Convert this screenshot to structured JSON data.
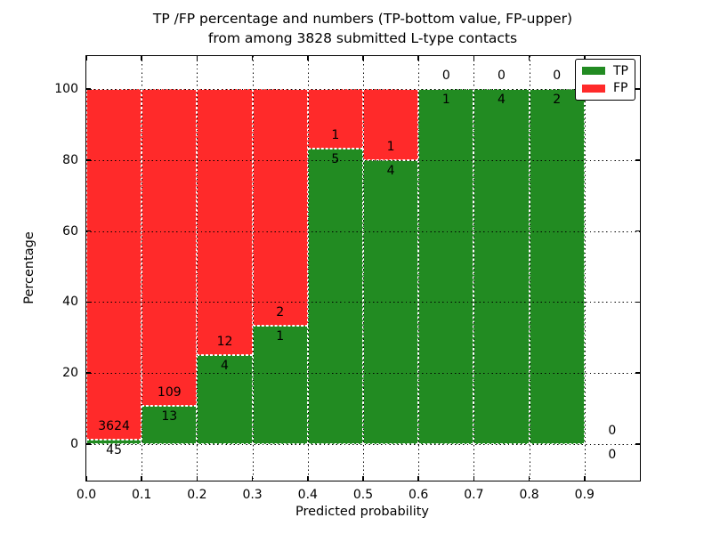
{
  "figure": {
    "background": "#ffffff"
  },
  "chart_data": {
    "type": "bar",
    "stacked": true,
    "title_line1": "TP /FP percentage and numbers (TP-bottom value, FP-upper)",
    "title_line2": "from among 3828 submitted L-type contacts",
    "xlabel": "Predicted probability",
    "ylabel": "Percentage",
    "xlim": [
      0.0,
      1.0
    ],
    "ylim": [
      -11,
      111
    ],
    "x_ticks": [
      "0.0",
      "0.1",
      "0.2",
      "0.3",
      "0.4",
      "0.5",
      "0.6",
      "0.7",
      "0.8",
      "0.9"
    ],
    "y_ticks": [
      "0",
      "20",
      "40",
      "60",
      "80",
      "100"
    ],
    "grid": true,
    "grid_style": "dotted-black-over-bars",
    "bar_edge_style": "dashed-white",
    "total_contacts": 3828,
    "legend": {
      "position": "upper-right",
      "entries": [
        {
          "label": "TP",
          "color": "#228B22"
        },
        {
          "label": "FP",
          "color": "#FF2A2A"
        }
      ]
    },
    "series": [
      {
        "name": "TP",
        "color": "#228B22",
        "position": "bottom"
      },
      {
        "name": "FP",
        "color": "#FF2A2A",
        "position": "upper"
      }
    ],
    "bins": [
      {
        "x_start": 0.0,
        "x_end": 0.1,
        "tp": 45,
        "fp": 3624,
        "tp_pct": 1.23
      },
      {
        "x_start": 0.1,
        "x_end": 0.2,
        "tp": 13,
        "fp": 109,
        "tp_pct": 10.66
      },
      {
        "x_start": 0.2,
        "x_end": 0.3,
        "tp": 4,
        "fp": 12,
        "tp_pct": 25.0
      },
      {
        "x_start": 0.3,
        "x_end": 0.4,
        "tp": 1,
        "fp": 2,
        "tp_pct": 33.33
      },
      {
        "x_start": 0.4,
        "x_end": 0.5,
        "tp": 5,
        "fp": 1,
        "tp_pct": 83.33
      },
      {
        "x_start": 0.5,
        "x_end": 0.6,
        "tp": 4,
        "fp": 1,
        "tp_pct": 80.0
      },
      {
        "x_start": 0.6,
        "x_end": 0.7,
        "tp": 1,
        "fp": 0,
        "tp_pct": 100.0
      },
      {
        "x_start": 0.7,
        "x_end": 0.8,
        "tp": 4,
        "fp": 0,
        "tp_pct": 100.0
      },
      {
        "x_start": 0.8,
        "x_end": 0.9,
        "tp": 2,
        "fp": 0,
        "tp_pct": 100.0
      },
      {
        "x_start": 0.9,
        "x_end": 1.0,
        "tp": 0,
        "fp": 0,
        "tp_pct": 0
      }
    ]
  }
}
